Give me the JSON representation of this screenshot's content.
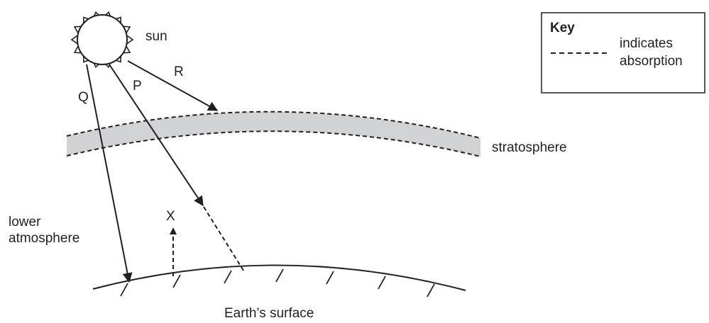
{
  "key": {
    "title": "Key",
    "line1": "indicates",
    "line2": "absorption"
  },
  "labels": {
    "sun": "sun",
    "ray_p": "P",
    "ray_q": "Q",
    "ray_r": "R",
    "x": "X",
    "stratosphere": "stratosphere",
    "lower_atmosphere_1": "lower",
    "lower_atmosphere_2": "atmosphere",
    "earth_surface": "Earth’s surface"
  },
  "colors": {
    "ink": "#231f20",
    "stratosphere_fill": "#d1d2d4"
  }
}
